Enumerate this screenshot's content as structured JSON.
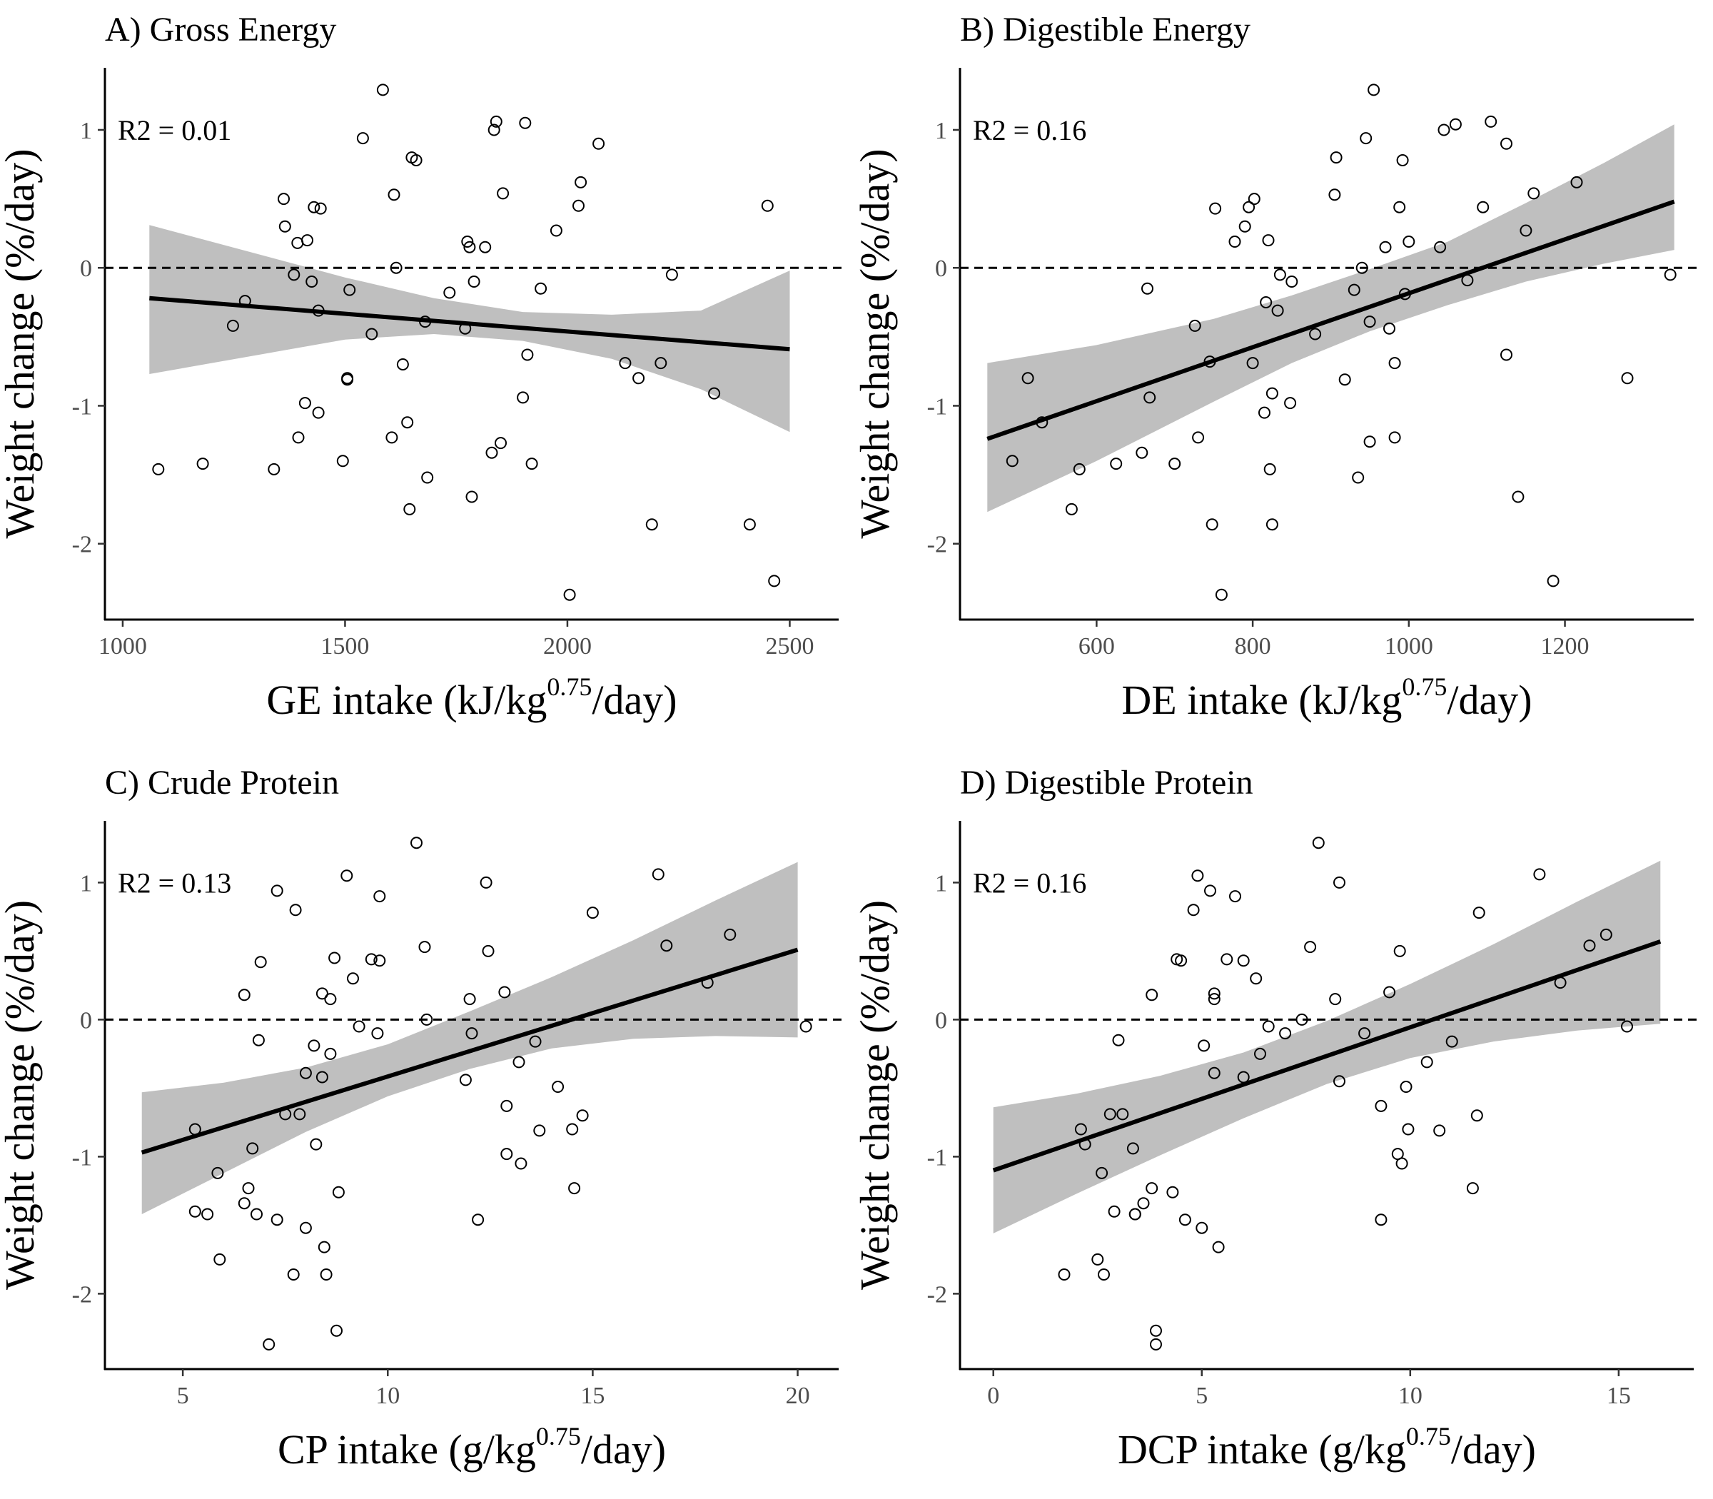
{
  "chart_data": [
    {
      "type": "scatter",
      "panel": "A",
      "title": "A) Gross Energy",
      "xlabel": "GE intake (kJ/kg",
      "xlabel_sup": "0.75",
      "xlabel_suffix": "/day)",
      "ylabel": "Weight change (%/day)",
      "xlim": [
        960,
        2610
      ],
      "ylim": [
        -2.55,
        1.45
      ],
      "xticks": [
        1000,
        1500,
        2000,
        2500
      ],
      "yticks": [
        -2,
        -1,
        0,
        1
      ],
      "r2": "R2 = 0.01",
      "reference_line_y": 0,
      "fit": {
        "x0": 1060,
        "y0": -0.22,
        "x1": 2500,
        "y1": -0.59
      },
      "band": {
        "x": [
          1060,
          1500,
          1700,
          1900,
          2100,
          2300,
          2500
        ],
        "lower": [
          -0.77,
          -0.52,
          -0.48,
          -0.53,
          -0.66,
          -0.88,
          -1.19
        ],
        "upper": [
          0.31,
          -0.07,
          -0.22,
          -0.32,
          -0.34,
          -0.31,
          -0.02
        ]
      },
      "points": [
        [
          1080,
          -1.46
        ],
        [
          1180,
          -1.42
        ],
        [
          1248,
          -0.42
        ],
        [
          1275,
          -0.24
        ],
        [
          1340,
          -1.46
        ],
        [
          1362,
          0.5
        ],
        [
          1365,
          0.3
        ],
        [
          1385,
          -0.05
        ],
        [
          1393,
          0.18
        ],
        [
          1395,
          -1.23
        ],
        [
          1410,
          -0.98
        ],
        [
          1415,
          0.2
        ],
        [
          1425,
          -0.1
        ],
        [
          1430,
          0.44
        ],
        [
          1440,
          -1.05
        ],
        [
          1445,
          0.43
        ],
        [
          1440,
          -0.31
        ],
        [
          1495,
          -1.4
        ],
        [
          1505,
          -0.8
        ],
        [
          1505,
          -0.81
        ],
        [
          1510,
          -0.16
        ],
        [
          1540,
          0.94
        ],
        [
          1560,
          -0.48
        ],
        [
          1585,
          1.29
        ],
        [
          1605,
          -1.23
        ],
        [
          1610,
          0.53
        ],
        [
          1615,
          0.0
        ],
        [
          1630,
          -0.7
        ],
        [
          1640,
          -1.12
        ],
        [
          1645,
          -1.75
        ],
        [
          1650,
          0.8
        ],
        [
          1660,
          0.78
        ],
        [
          1680,
          -0.39
        ],
        [
          1685,
          -1.52
        ],
        [
          1735,
          -0.18
        ],
        [
          1770,
          -0.44
        ],
        [
          1775,
          0.19
        ],
        [
          1780,
          0.15
        ],
        [
          1785,
          -1.66
        ],
        [
          1790,
          -0.1
        ],
        [
          1815,
          0.15
        ],
        [
          1830,
          -1.34
        ],
        [
          1835,
          1.0
        ],
        [
          1840,
          1.06
        ],
        [
          1850,
          -1.27
        ],
        [
          1855,
          0.54
        ],
        [
          1900,
          -0.94
        ],
        [
          1905,
          1.05
        ],
        [
          1910,
          -0.63
        ],
        [
          1920,
          -1.42
        ],
        [
          1940,
          -0.15
        ],
        [
          1975,
          0.27
        ],
        [
          2005,
          -2.37
        ],
        [
          2025,
          0.45
        ],
        [
          2030,
          0.62
        ],
        [
          2070,
          0.9
        ],
        [
          2130,
          -0.69
        ],
        [
          2160,
          -0.8
        ],
        [
          2190,
          -1.86
        ],
        [
          2210,
          -0.69
        ],
        [
          2235,
          -0.05
        ],
        [
          2330,
          -0.91
        ],
        [
          2410,
          -1.86
        ],
        [
          2450,
          0.45
        ],
        [
          2465,
          -2.27
        ]
      ]
    },
    {
      "type": "scatter",
      "panel": "B",
      "title": "B) Digestible Energy",
      "xlabel": "DE intake (kJ/kg",
      "xlabel_sup": "0.75",
      "xlabel_suffix": "/day)",
      "ylabel": "Weight change (%/day)",
      "xlim": [
        425,
        1365
      ],
      "ylim": [
        -2.55,
        1.45
      ],
      "xticks": [
        600,
        800,
        1000,
        1200
      ],
      "yticks": [
        -2,
        -1,
        0,
        1
      ],
      "r2": "R2 = 0.16",
      "reference_line_y": 0,
      "fit": {
        "x0": 460,
        "y0": -1.24,
        "x1": 1340,
        "y1": 0.48
      },
      "band": {
        "x": [
          460,
          600,
          750,
          850,
          950,
          1050,
          1150,
          1250,
          1340
        ],
        "lower": [
          -1.77,
          -1.4,
          -0.97,
          -0.69,
          -0.46,
          -0.27,
          -0.1,
          0.03,
          0.13
        ],
        "upper": [
          -0.69,
          -0.56,
          -0.37,
          -0.2,
          -0.01,
          0.19,
          0.47,
          0.76,
          1.04
        ]
      },
      "points": [
        [
          492,
          -1.4
        ],
        [
          512,
          -0.8
        ],
        [
          530,
          -1.12
        ],
        [
          568,
          -1.75
        ],
        [
          578,
          -1.46
        ],
        [
          625,
          -1.42
        ],
        [
          658,
          -1.34
        ],
        [
          665,
          -0.15
        ],
        [
          668,
          -0.94
        ],
        [
          700,
          -1.42
        ],
        [
          726,
          -0.42
        ],
        [
          730,
          -1.23
        ],
        [
          745,
          -0.68
        ],
        [
          748,
          -1.86
        ],
        [
          752,
          0.43
        ],
        [
          760,
          -2.37
        ],
        [
          777,
          0.19
        ],
        [
          790,
          0.3
        ],
        [
          795,
          0.44
        ],
        [
          800,
          -0.69
        ],
        [
          802,
          0.5
        ],
        [
          815,
          -1.05
        ],
        [
          817,
          -0.25
        ],
        [
          820,
          0.2
        ],
        [
          822,
          -1.46
        ],
        [
          825,
          -1.86
        ],
        [
          825,
          -0.91
        ],
        [
          832,
          -0.31
        ],
        [
          835,
          -0.05
        ],
        [
          848,
          -0.98
        ],
        [
          850,
          -0.1
        ],
        [
          880,
          -0.48
        ],
        [
          905,
          0.53
        ],
        [
          907,
          0.8
        ],
        [
          918,
          -0.81
        ],
        [
          930,
          -0.16
        ],
        [
          935,
          -1.52
        ],
        [
          940,
          0.0
        ],
        [
          945,
          0.94
        ],
        [
          950,
          -0.39
        ],
        [
          950,
          -1.26
        ],
        [
          955,
          1.29
        ],
        [
          970,
          0.15
        ],
        [
          975,
          -0.44
        ],
        [
          982,
          -0.69
        ],
        [
          982,
          -1.23
        ],
        [
          988,
          0.44
        ],
        [
          992,
          0.78
        ],
        [
          995,
          -0.19
        ],
        [
          1000,
          0.19
        ],
        [
          1040,
          0.15
        ],
        [
          1045,
          1.0
        ],
        [
          1060,
          1.04
        ],
        [
          1075,
          -0.09
        ],
        [
          1095,
          0.44
        ],
        [
          1105,
          1.06
        ],
        [
          1125,
          0.9
        ],
        [
          1125,
          -0.63
        ],
        [
          1140,
          -1.66
        ],
        [
          1150,
          0.27
        ],
        [
          1160,
          0.54
        ],
        [
          1185,
          -2.27
        ],
        [
          1215,
          0.62
        ],
        [
          1280,
          -0.8
        ],
        [
          1335,
          -0.05
        ]
      ]
    },
    {
      "type": "scatter",
      "panel": "C",
      "title": "C) Crude Protein",
      "xlabel": "CP intake (g/kg",
      "xlabel_sup": "0.75",
      "xlabel_suffix": "/day)",
      "ylabel": "Weight change (%/day)",
      "xlim": [
        3.1,
        21.0
      ],
      "ylim": [
        -2.55,
        1.45
      ],
      "xticks": [
        5,
        10,
        15,
        20
      ],
      "yticks": [
        -2,
        -1,
        0,
        1
      ],
      "r2": "R2 = 0.13",
      "reference_line_y": 0,
      "fit": {
        "x0": 4.0,
        "y0": -0.97,
        "x1": 20.0,
        "y1": 0.51
      },
      "band": {
        "x": [
          4.0,
          6.0,
          8.0,
          10.0,
          12.0,
          14.0,
          16.0,
          18.0,
          20.0
        ],
        "lower": [
          -1.42,
          -1.12,
          -0.82,
          -0.56,
          -0.36,
          -0.21,
          -0.14,
          -0.12,
          -0.13
        ],
        "upper": [
          -0.53,
          -0.46,
          -0.35,
          -0.18,
          0.06,
          0.31,
          0.58,
          0.87,
          1.15
        ]
      },
      "points": [
        [
          5.3,
          -0.8
        ],
        [
          5.3,
          -1.4
        ],
        [
          5.6,
          -1.42
        ],
        [
          5.85,
          -1.12
        ],
        [
          5.9,
          -1.75
        ],
        [
          6.5,
          0.18
        ],
        [
          6.5,
          -1.34
        ],
        [
          6.6,
          -1.23
        ],
        [
          6.7,
          -0.94
        ],
        [
          6.8,
          -1.42
        ],
        [
          6.85,
          -0.15
        ],
        [
          6.9,
          0.42
        ],
        [
          7.1,
          -2.37
        ],
        [
          7.3,
          0.94
        ],
        [
          7.3,
          -1.46
        ],
        [
          7.5,
          -0.69
        ],
        [
          7.7,
          -1.86
        ],
        [
          7.75,
          0.8
        ],
        [
          7.85,
          -0.69
        ],
        [
          8.0,
          -0.39
        ],
        [
          8.0,
          -1.52
        ],
        [
          8.2,
          -0.19
        ],
        [
          8.25,
          -0.91
        ],
        [
          8.4,
          -0.42
        ],
        [
          8.4,
          0.19
        ],
        [
          8.45,
          -1.66
        ],
        [
          8.5,
          -1.86
        ],
        [
          8.6,
          -0.25
        ],
        [
          8.6,
          0.15
        ],
        [
          8.7,
          0.45
        ],
        [
          8.75,
          -2.27
        ],
        [
          8.8,
          -1.26
        ],
        [
          9.0,
          1.05
        ],
        [
          9.15,
          0.3
        ],
        [
          9.3,
          -0.05
        ],
        [
          9.6,
          0.44
        ],
        [
          9.75,
          -0.1
        ],
        [
          9.8,
          0.43
        ],
        [
          9.8,
          0.9
        ],
        [
          10.7,
          1.29
        ],
        [
          10.9,
          0.53
        ],
        [
          10.95,
          0.0
        ],
        [
          11.9,
          -0.44
        ],
        [
          12.0,
          0.15
        ],
        [
          12.05,
          -0.1
        ],
        [
          12.2,
          -1.46
        ],
        [
          12.4,
          1.0
        ],
        [
          12.45,
          0.5
        ],
        [
          12.85,
          0.2
        ],
        [
          12.9,
          -0.63
        ],
        [
          12.9,
          -0.98
        ],
        [
          13.2,
          -0.31
        ],
        [
          13.25,
          -1.05
        ],
        [
          13.6,
          -0.16
        ],
        [
          13.7,
          -0.81
        ],
        [
          14.15,
          -0.49
        ],
        [
          14.5,
          -0.8
        ],
        [
          14.55,
          -1.23
        ],
        [
          14.75,
          -0.7
        ],
        [
          15.0,
          0.78
        ],
        [
          16.6,
          1.06
        ],
        [
          16.8,
          0.54
        ],
        [
          17.8,
          0.27
        ],
        [
          18.35,
          0.62
        ],
        [
          20.2,
          -0.05
        ]
      ]
    },
    {
      "type": "scatter",
      "panel": "D",
      "title": "D) Digestible Protein",
      "xlabel": "DCP intake (g/kg",
      "xlabel_sup": "0.75",
      "xlabel_suffix": "/day)",
      "ylabel": "Weight change (%/day)",
      "xlim": [
        -0.8,
        16.8
      ],
      "ylim": [
        -2.55,
        1.45
      ],
      "xticks": [
        0,
        5,
        10,
        15
      ],
      "yticks": [
        -2,
        -1,
        0,
        1
      ],
      "r2": "R2 = 0.16",
      "reference_line_y": 0,
      "fit": {
        "x0": 0.0,
        "y0": -1.1,
        "x1": 16.0,
        "y1": 0.57
      },
      "band": {
        "x": [
          0.0,
          2.0,
          4.0,
          6.0,
          8.0,
          10.0,
          12.0,
          14.0,
          16.0
        ],
        "lower": [
          -1.56,
          -1.27,
          -0.99,
          -0.72,
          -0.47,
          -0.28,
          -0.16,
          -0.08,
          -0.03
        ],
        "upper": [
          -0.64,
          -0.54,
          -0.41,
          -0.24,
          -0.01,
          0.26,
          0.55,
          0.86,
          1.16
        ]
      },
      "points": [
        [
          1.7,
          -1.86
        ],
        [
          2.1,
          -0.8
        ],
        [
          2.2,
          -0.91
        ],
        [
          2.5,
          -1.75
        ],
        [
          2.6,
          -1.12
        ],
        [
          2.65,
          -1.86
        ],
        [
          2.8,
          -0.69
        ],
        [
          2.9,
          -1.4
        ],
        [
          3.0,
          -0.15
        ],
        [
          3.1,
          -0.69
        ],
        [
          3.35,
          -0.94
        ],
        [
          3.4,
          -1.42
        ],
        [
          3.4,
          -1.42
        ],
        [
          3.6,
          -1.34
        ],
        [
          3.8,
          -1.23
        ],
        [
          3.8,
          0.18
        ],
        [
          3.9,
          -2.27
        ],
        [
          3.9,
          -2.37
        ],
        [
          4.3,
          -1.26
        ],
        [
          4.4,
          0.44
        ],
        [
          4.5,
          0.43
        ],
        [
          4.6,
          -1.46
        ],
        [
          4.8,
          0.8
        ],
        [
          4.9,
          1.05
        ],
        [
          5.0,
          -1.52
        ],
        [
          5.05,
          -0.19
        ],
        [
          5.2,
          0.94
        ],
        [
          5.3,
          -0.39
        ],
        [
          5.3,
          0.15
        ],
        [
          5.3,
          0.19
        ],
        [
          5.4,
          -1.66
        ],
        [
          5.6,
          0.44
        ],
        [
          5.8,
          0.9
        ],
        [
          6.0,
          -0.42
        ],
        [
          6.0,
          0.43
        ],
        [
          6.3,
          0.3
        ],
        [
          6.4,
          -0.25
        ],
        [
          6.6,
          -0.05
        ],
        [
          7.0,
          -0.1
        ],
        [
          7.4,
          0.0
        ],
        [
          7.6,
          0.53
        ],
        [
          7.8,
          1.29
        ],
        [
          8.2,
          0.15
        ],
        [
          8.3,
          -0.45
        ],
        [
          8.3,
          1.0
        ],
        [
          8.9,
          -0.1
        ],
        [
          9.3,
          -0.63
        ],
        [
          9.3,
          -1.46
        ],
        [
          9.5,
          0.2
        ],
        [
          9.7,
          -0.98
        ],
        [
          9.75,
          0.5
        ],
        [
          9.8,
          -1.05
        ],
        [
          9.9,
          -0.49
        ],
        [
          9.95,
          -0.8
        ],
        [
          10.4,
          -0.31
        ],
        [
          10.7,
          -0.81
        ],
        [
          11.0,
          -0.16
        ],
        [
          11.5,
          -1.23
        ],
        [
          11.6,
          -0.7
        ],
        [
          11.65,
          0.78
        ],
        [
          13.1,
          1.06
        ],
        [
          13.6,
          0.27
        ],
        [
          14.3,
          0.54
        ],
        [
          14.7,
          0.62
        ],
        [
          15.2,
          -0.05
        ]
      ]
    }
  ]
}
